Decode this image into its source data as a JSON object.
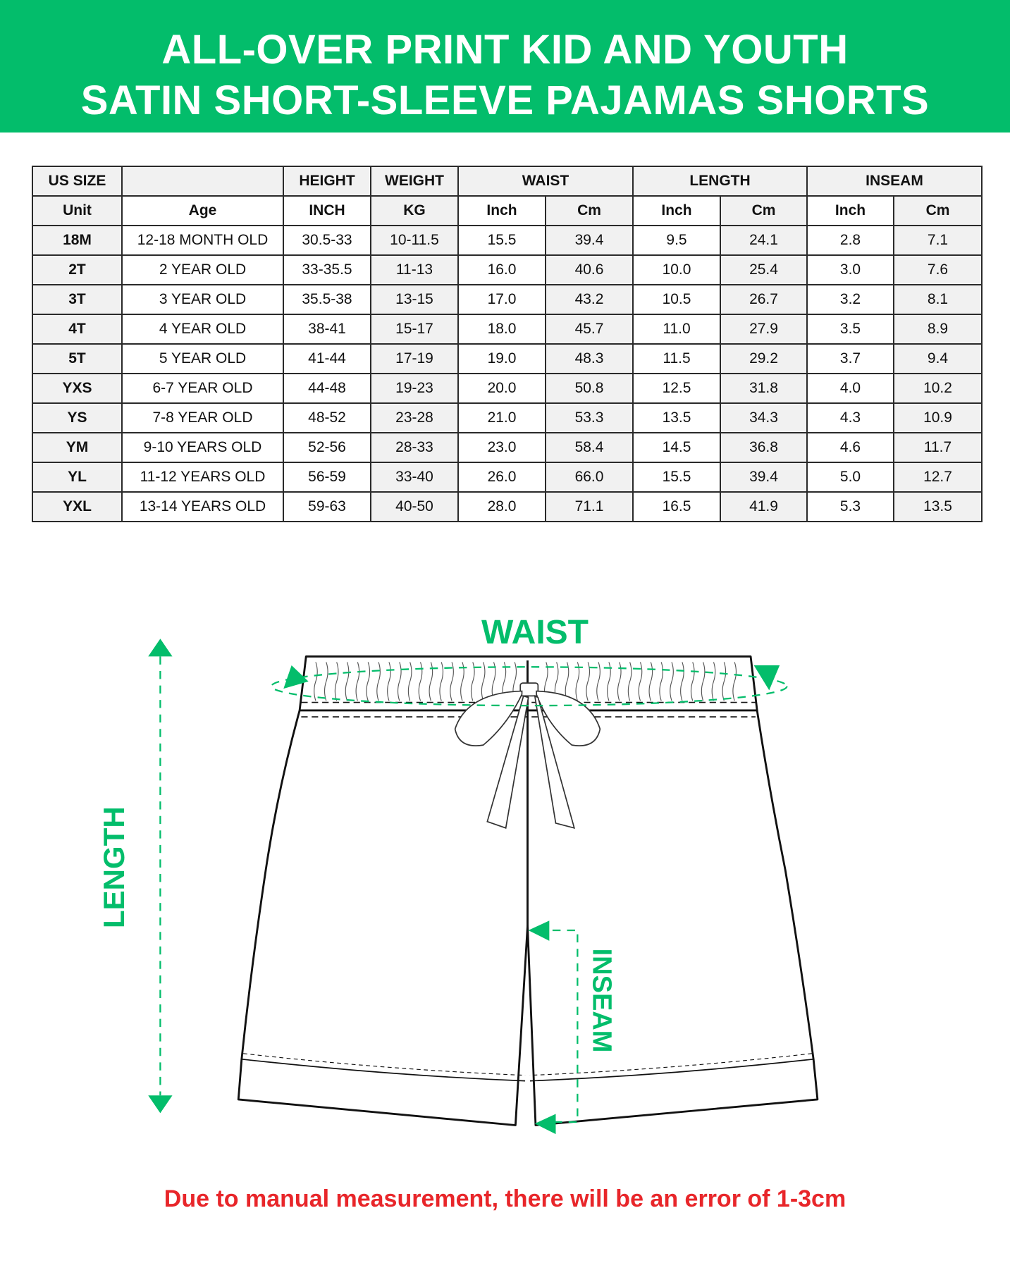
{
  "header": {
    "title_line1": "ALL-OVER PRINT KID AND YOUTH",
    "title_line2": "SATIN SHORT-SLEEVE PAJAMAS SHORTS"
  },
  "colors": {
    "accent": "#03bd6b",
    "warning": "#e8262a"
  },
  "table": {
    "group_headers": [
      "US SIZE",
      "",
      "HEIGHT",
      "WEIGHT",
      "WAIST",
      "LENGTH",
      "INSEAM"
    ],
    "sub_headers": [
      "Unit",
      "Age",
      "INCH",
      "KG",
      "Inch",
      "Cm",
      "Inch",
      "Cm",
      "Inch",
      "Cm"
    ],
    "rows": [
      [
        "18M",
        "12-18 MONTH OLD",
        "30.5-33",
        "10-11.5",
        "15.5",
        "39.4",
        "9.5",
        "24.1",
        "2.8",
        "7.1"
      ],
      [
        "2T",
        "2 YEAR OLD",
        "33-35.5",
        "11-13",
        "16.0",
        "40.6",
        "10.0",
        "25.4",
        "3.0",
        "7.6"
      ],
      [
        "3T",
        "3 YEAR OLD",
        "35.5-38",
        "13-15",
        "17.0",
        "43.2",
        "10.5",
        "26.7",
        "3.2",
        "8.1"
      ],
      [
        "4T",
        "4 YEAR OLD",
        "38-41",
        "15-17",
        "18.0",
        "45.7",
        "11.0",
        "27.9",
        "3.5",
        "8.9"
      ],
      [
        "5T",
        "5 YEAR OLD",
        "41-44",
        "17-19",
        "19.0",
        "48.3",
        "11.5",
        "29.2",
        "3.7",
        "9.4"
      ],
      [
        "YXS",
        "6-7 YEAR OLD",
        "44-48",
        "19-23",
        "20.0",
        "50.8",
        "12.5",
        "31.8",
        "4.0",
        "10.2"
      ],
      [
        "YS",
        "7-8 YEAR OLD",
        "48-52",
        "23-28",
        "21.0",
        "53.3",
        "13.5",
        "34.3",
        "4.3",
        "10.9"
      ],
      [
        "YM",
        "9-10 YEARS OLD",
        "52-56",
        "28-33",
        "23.0",
        "58.4",
        "14.5",
        "36.8",
        "4.6",
        "11.7"
      ],
      [
        "YL",
        "11-12 YEARS OLD",
        "56-59",
        "33-40",
        "26.0",
        "66.0",
        "15.5",
        "39.4",
        "5.0",
        "12.7"
      ],
      [
        "YXL",
        "13-14 YEARS OLD",
        "59-63",
        "40-50",
        "28.0",
        "71.1",
        "16.5",
        "41.9",
        "5.3",
        "13.5"
      ]
    ]
  },
  "diagram": {
    "waist_label": "WAIST",
    "length_label": "LENGTH",
    "inseam_label": "INSEAM"
  },
  "footer": {
    "note": "Due to manual measurement, there will be an error of 1-3cm"
  }
}
